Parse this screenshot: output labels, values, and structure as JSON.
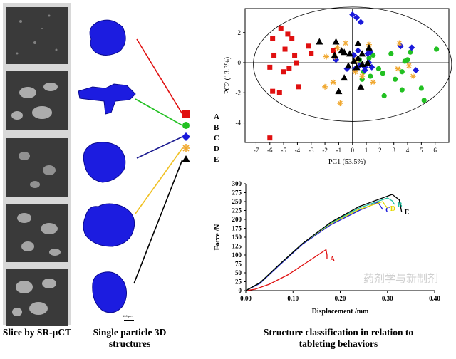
{
  "captions": {
    "slices": "Slice by SR-μCT",
    "structures": "Single particle 3D structures",
    "classification": "Structure classification in relation to tableting behaviors"
  },
  "class_labels": [
    "A",
    "B",
    "C",
    "D",
    "E"
  ],
  "scale_bar_label": "100 μm",
  "watermark": "药剂学与新制剂",
  "colors": {
    "A": "#e01010",
    "B": "#22c022",
    "C": "#1a1adb",
    "D": "#f0a830",
    "E": "#000000",
    "link_E": "#000000"
  },
  "markers": {
    "A": "square",
    "B": "circle",
    "C": "diamond",
    "D": "asterisk",
    "E": "triangle"
  },
  "chart_data": [
    {
      "type": "scatter",
      "title": "",
      "xlabel": "PC1 (53.5%)",
      "ylabel": "PC2 (13.3%)",
      "xlim": [
        -7.8,
        7
      ],
      "ylim": [
        -5.3,
        3.6
      ],
      "xticks": [
        -7,
        -6,
        -5,
        -4,
        -3,
        -2,
        -1,
        0,
        1,
        2,
        3,
        4,
        5,
        6
      ],
      "yticks": [
        -4,
        -2,
        0,
        2
      ],
      "grid": false,
      "legend": "none",
      "series": [
        {
          "class": "A",
          "marker": "square",
          "color": "#e01010",
          "x": [
            -5.2,
            -5.8,
            -4.4,
            -3.2,
            -3.0,
            -4.2,
            -5.7,
            -6.0,
            -4.6,
            -4.1,
            -5.8,
            -5.3,
            -3.9,
            -5.0,
            -1.4,
            -4.9,
            -4.7,
            -6.0
          ],
          "y": [
            2.3,
            1.6,
            1.6,
            1.1,
            0.6,
            0.5,
            0.5,
            -0.3,
            -0.4,
            0.0,
            -1.9,
            -2.0,
            -1.6,
            -0.6,
            0.8,
            0.9,
            1.9,
            -5.0
          ]
        },
        {
          "class": "B",
          "marker": "circle",
          "color": "#22c022",
          "x": [
            6.1,
            4.2,
            3.8,
            4.0,
            3.6,
            1.9,
            1.3,
            2.2,
            0.8,
            0.7,
            2.3,
            5.0,
            5.2,
            3.6,
            1.5,
            0.5,
            1.2,
            0.9,
            2.8,
            3.1
          ],
          "y": [
            0.9,
            0.7,
            0.1,
            0.2,
            -0.6,
            -0.4,
            -0.9,
            -0.7,
            -0.6,
            -1.1,
            -2.2,
            -1.7,
            -2.5,
            -1.8,
            0.5,
            0.2,
            0.3,
            -0.3,
            0.6,
            -1.1
          ],
          "note": ""
        },
        {
          "class": "C",
          "marker": "diamond",
          "color": "#1a1adb",
          "x": [
            0.0,
            0.3,
            0.6,
            0.4,
            0.1,
            -1.2,
            1.1,
            1.2,
            0.5,
            0.9,
            -0.4,
            0.9,
            1.4,
            4.3,
            4.6,
            3.5,
            0.2,
            1.3
          ],
          "y": [
            3.2,
            3.0,
            2.7,
            0.8,
            0.5,
            0.2,
            0.6,
            0.0,
            -0.2,
            -0.3,
            -0.4,
            -0.5,
            -0.3,
            1.0,
            -0.5,
            1.1,
            -0.4,
            0.7
          ]
        },
        {
          "class": "D",
          "marker": "asterisk",
          "color": "#f0a830",
          "x": [
            -1.1,
            -1.9,
            -1.4,
            -2.0,
            0.3,
            -0.9,
            -1.3,
            0.7,
            1.5,
            3.4,
            4.1,
            3.3,
            1.2,
            0.2,
            -0.5,
            4.4
          ],
          "y": [
            1.0,
            0.4,
            -1.3,
            -1.6,
            0.2,
            -2.7,
            0.4,
            -0.9,
            -1.3,
            1.3,
            -0.2,
            -0.4,
            1.2,
            -0.6,
            1.3,
            -0.9
          ]
        },
        {
          "class": "E",
          "marker": "triangle",
          "color": "#000000",
          "x": [
            -2.4,
            -1.2,
            -0.8,
            -0.6,
            -0.2,
            0.4,
            1.2,
            0.7,
            0.4,
            0.1,
            0.3,
            -0.3,
            -0.6,
            0.7,
            -1.3,
            -1.0,
            0.6,
            1.1
          ],
          "y": [
            1.4,
            1.4,
            0.8,
            0.7,
            0.6,
            1.3,
            1.0,
            0.6,
            0.3,
            0.1,
            -0.3,
            -0.2,
            -1.0,
            -0.1,
            0.5,
            -1.9,
            -1.6,
            0.0
          ]
        }
      ],
      "ellipse": {
        "cx": 0,
        "cy": -0.1,
        "rx": 7.2,
        "ry": 3.8
      }
    },
    {
      "type": "line",
      "title": "",
      "xlabel": "Displacement /mm",
      "ylabel": "Force /N",
      "xlim": [
        0,
        0.4
      ],
      "ylim": [
        0,
        300
      ],
      "xticks": [
        0.0,
        0.1,
        0.2,
        0.3,
        0.4
      ],
      "xtick_labels": [
        "0.00",
        "0.10",
        "0.20",
        "0.30",
        "0.40"
      ],
      "yticks": [
        0,
        25,
        50,
        75,
        100,
        125,
        150,
        175,
        200,
        225,
        250,
        275,
        300
      ],
      "grid": false,
      "legend": "inline-labels",
      "series": [
        {
          "name": "A",
          "color": "#e01010",
          "x": [
            0,
            0.02,
            0.05,
            0.09,
            0.13,
            0.17,
            0.172,
            0.172
          ],
          "y": [
            0,
            4,
            18,
            45,
            80,
            115,
            100,
            90
          ]
        },
        {
          "name": "C",
          "color": "#1a1adb",
          "x": [
            0,
            0.03,
            0.07,
            0.12,
            0.18,
            0.24,
            0.28,
            0.285,
            0.29
          ],
          "y": [
            0,
            20,
            70,
            130,
            185,
            225,
            248,
            238,
            228
          ]
        },
        {
          "name": "D",
          "color": "#e6d800",
          "x": [
            0,
            0.03,
            0.07,
            0.12,
            0.18,
            0.24,
            0.29,
            0.295,
            0.3
          ],
          "y": [
            0,
            22,
            72,
            132,
            188,
            228,
            250,
            240,
            232
          ]
        },
        {
          "name": "B",
          "color": "#22c0a0",
          "x": [
            0,
            0.03,
            0.07,
            0.12,
            0.18,
            0.24,
            0.3,
            0.31,
            0.315
          ],
          "y": [
            0,
            22,
            72,
            132,
            190,
            232,
            260,
            252,
            242
          ]
        },
        {
          "name": "E",
          "color": "#000000",
          "x": [
            0,
            0.03,
            0.07,
            0.12,
            0.18,
            0.24,
            0.31,
            0.325,
            0.33
          ],
          "y": [
            0,
            22,
            72,
            132,
            192,
            236,
            270,
            255,
            222
          ]
        }
      ]
    }
  ]
}
